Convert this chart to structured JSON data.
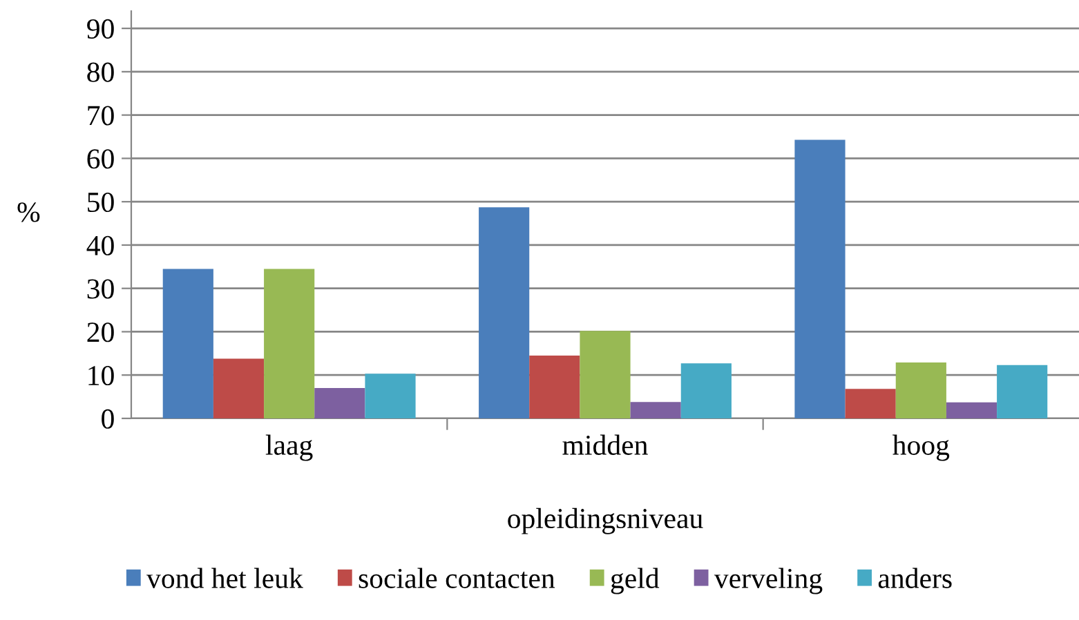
{
  "chart_data": {
    "type": "bar",
    "xlabel": "opleidingsniveau",
    "ylabel": "%",
    "categories": [
      "laag",
      "midden",
      "hoog"
    ],
    "series": [
      {
        "name": "vond het leuk",
        "color": "#4a7ebb",
        "values": [
          34.5,
          48.7,
          64.3
        ]
      },
      {
        "name": "sociale contacten",
        "color": "#be4b48",
        "values": [
          13.8,
          14.5,
          6.8
        ]
      },
      {
        "name": "geld",
        "color": "#98b954",
        "values": [
          34.5,
          20.2,
          12.9
        ]
      },
      {
        "name": "verveling",
        "color": "#7d60a0",
        "values": [
          7,
          3.8,
          3.7
        ]
      },
      {
        "name": "anders",
        "color": "#46aac5",
        "values": [
          10.3,
          12.7,
          12.3
        ]
      }
    ],
    "ylim": [
      0,
      94
    ],
    "yticks": [
      0,
      10,
      20,
      30,
      40,
      50,
      60,
      70,
      80,
      90
    ],
    "grid": "y",
    "legend": "bottom"
  }
}
